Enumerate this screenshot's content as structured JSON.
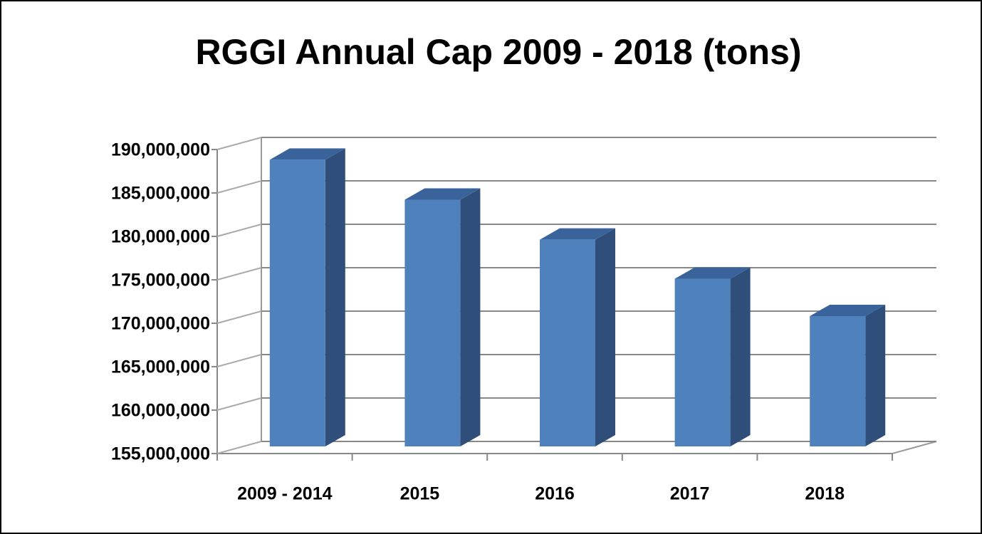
{
  "chart_data": {
    "type": "bar3d",
    "title": "RGGI Annual Cap 2009 - 2018 (tons)",
    "categories": [
      "2009 - 2014",
      "2015",
      "2016",
      "2017",
      "2018"
    ],
    "values": [
      188000000,
      183400000,
      178800000,
      174300000,
      170000000
    ],
    "color": "#4f81bd",
    "ylim": [
      155000000,
      190000000
    ],
    "yticks": [
      {
        "value": 155000000,
        "label": "155,000,000"
      },
      {
        "value": 160000000,
        "label": "160,000,000"
      },
      {
        "value": 165000000,
        "label": "165,000,000"
      },
      {
        "value": 170000000,
        "label": "170,000,000"
      },
      {
        "value": 175000000,
        "label": "175,000,000"
      },
      {
        "value": 180000000,
        "label": "180,000,000"
      },
      {
        "value": 185000000,
        "label": "185,000,000"
      },
      {
        "value": 190000000,
        "label": "190,000,000"
      }
    ],
    "grid": true
  }
}
